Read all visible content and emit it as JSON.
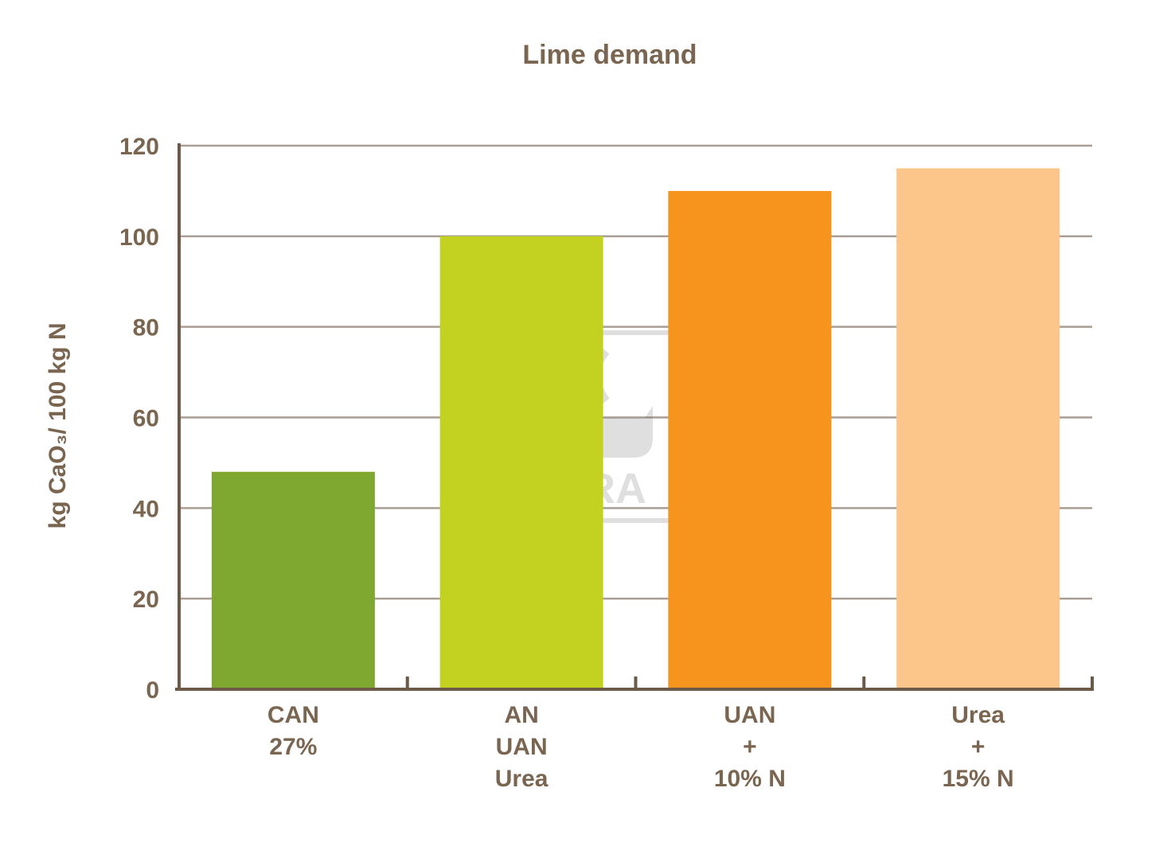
{
  "chart_data": {
    "type": "bar",
    "title": "Lime demand",
    "ylabel": "kg CaO₃/ 100 kg N",
    "xlabel": "",
    "ylim": [
      0,
      120
    ],
    "yticks": [
      0,
      20,
      40,
      60,
      80,
      100,
      120
    ],
    "grid": true,
    "categories": [
      [
        "CAN",
        "27%"
      ],
      [
        "AN",
        "UAN",
        "Urea"
      ],
      [
        "UAN",
        "+",
        "10% N"
      ],
      [
        "Urea",
        "+",
        "15% N"
      ]
    ],
    "values": [
      48,
      100,
      110,
      115
    ],
    "colors": [
      "#7fa830",
      "#c3d121",
      "#f7941e",
      "#fcc68a"
    ],
    "watermark": "YARA"
  },
  "colors": {
    "text": "#7a6650",
    "axis": "#6b5a48",
    "grid": "#a89e94"
  }
}
